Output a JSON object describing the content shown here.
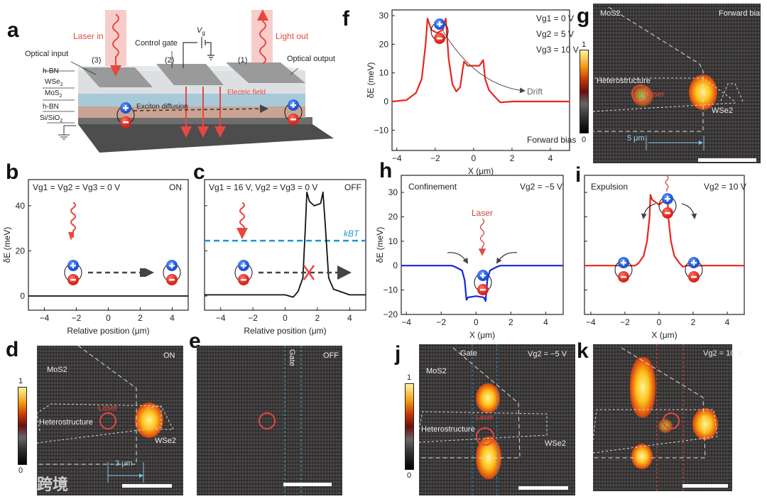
{
  "panels": {
    "a": "a",
    "b": "b",
    "c": "c",
    "d": "d",
    "e": "e",
    "f": "f",
    "g": "g",
    "h": "h",
    "i": "i",
    "j": "j",
    "k": "k"
  },
  "panel_a": {
    "laser_in": "Laser in",
    "light_out": "Light out",
    "control_gate": "Control gate",
    "vg": "V",
    "vg_sub": "g",
    "optical_input": "Optical input",
    "optical_output": "Optical output",
    "gate3": "(3)",
    "gate2": "(2)",
    "gate1": "(1)",
    "layers": [
      "h-BN",
      "WSe",
      "MoS",
      "h-BN",
      "Si/SiO"
    ],
    "sub2": "2",
    "electric_field": "Electric field",
    "exciton_diffusion": "Exciton diffusion"
  },
  "panel_b": {
    "condition": "Vg1 = Vg2 = Vg3 = 0 V",
    "state": "ON"
  },
  "panel_c": {
    "condition": "Vg1 = 16 V, Vg2 = Vg3 = 0 V",
    "state": "OFF",
    "kbt": "kBT"
  },
  "panel_f": {
    "vg1": "Vg1 = 0 V",
    "vg2": "Vg2 = 5 V",
    "vg3": "Vg3 = 10 V",
    "drift": "Drift",
    "bias": "Forward bias"
  },
  "panel_h": {
    "title": "Confinement",
    "vg": "Vg2 = −5 V",
    "laser": "Laser"
  },
  "panel_i": {
    "title": "Expulsion",
    "vg": "Vg2 = 10 V"
  },
  "images": {
    "d": {
      "state": "ON",
      "mos2": "MoS2",
      "hetero": "Heterostructure",
      "laser": "Laser",
      "wse2": "WSe2",
      "scale": "3 μm",
      "cb_max": "1",
      "cb_min": "0"
    },
    "e": {
      "state": "OFF",
      "gate": "Gate"
    },
    "g": {
      "state": "Forward bias",
      "mos2": "MoS2",
      "hetero": "Heterostructure",
      "laser": "Laser",
      "wse2": "WSe2",
      "scale": "5 μm",
      "cb_max": "1",
      "cb_min": "0"
    },
    "j": {
      "vg": "Vg2 = −5 V",
      "gate": "Gate",
      "mos2": "MoS2",
      "hetero": "Heterostructure",
      "laser": "Laser",
      "wse2": "WSe2",
      "cb_max": "1",
      "cb_min": "0"
    },
    "k": {
      "vg": "Vg2 = 10 V"
    }
  },
  "watermark": "大数跨境",
  "colors": {
    "red": "#e8473f",
    "blue": "#1a98d0",
    "exciton_plus": "#2f6fe0",
    "exciton_minus": "#e8382c",
    "h_curve": "#1428d8",
    "fi_curve": "#e8261e"
  },
  "chart_data": [
    {
      "id": "b",
      "type": "line",
      "xlabel": "Relative position (μm)",
      "ylabel": "δE (meV)",
      "xlim": [
        -5,
        5
      ],
      "ylim": [
        -6.3,
        51.6
      ],
      "xticks": [
        -4,
        -2,
        0,
        2,
        4
      ],
      "yticks": [
        0,
        20,
        40
      ],
      "ytick_labels": true,
      "color": "#111",
      "x": [
        -5,
        5
      ],
      "y": [
        0,
        0
      ]
    },
    {
      "id": "c",
      "type": "line",
      "xlabel": "Relative position (μm)",
      "ylabel": "",
      "xlim": [
        -5,
        5
      ],
      "ylim": [
        -6.3,
        51.6
      ],
      "xticks": [
        -4,
        -2,
        0,
        2,
        4
      ],
      "yticks": [
        0,
        20,
        40
      ],
      "ytick_labels": false,
      "color": "#111",
      "x": [
        -5,
        0,
        0.5,
        0.8,
        1.1,
        1.25,
        1.35,
        1.5,
        1.8,
        2.2,
        2.35,
        2.5,
        2.7,
        3,
        4,
        5
      ],
      "y": [
        0.5,
        0.5,
        -0.5,
        2,
        8,
        30,
        46,
        42,
        40,
        41,
        46,
        30,
        8,
        3,
        0.5,
        0.5
      ],
      "hline": {
        "y": 24.5,
        "color": "#1a98d0"
      }
    },
    {
      "id": "f",
      "type": "line",
      "xlabel": "X (μm)",
      "ylabel": "δE (meV)",
      "xlim": [
        -4.25,
        5
      ],
      "ylim": [
        -17.1,
        32
      ],
      "xticks": [
        -4,
        -2,
        0,
        2,
        4
      ],
      "yticks": [
        -10,
        0,
        10,
        20,
        30
      ],
      "ytick_labels": true,
      "color": "#e8261e",
      "x": [
        -4.25,
        -3.5,
        -3,
        -2.7,
        -2.5,
        -2.4,
        -2.2,
        -1.9,
        -1.6,
        -1.45,
        -1.3,
        -1.1,
        -0.9,
        -0.7,
        -0.55,
        -0.5,
        -0.3,
        0.3,
        0.5,
        0.6,
        0.8,
        1.2,
        1.4,
        2,
        5
      ],
      "y": [
        0,
        0.5,
        3,
        8,
        20,
        29,
        25,
        24,
        25,
        29,
        15,
        6,
        3.5,
        5,
        12,
        14,
        12.5,
        12.5,
        14.5,
        8,
        4,
        1,
        -0.3,
        0,
        0
      ]
    },
    {
      "id": "h",
      "type": "line",
      "xlabel": "X (μm)",
      "ylabel": "δE (meV)",
      "xlim": [
        -4.29,
        5
      ],
      "ylim": [
        -20,
        37
      ],
      "xticks": [
        -4,
        -2,
        0,
        2,
        4
      ],
      "yticks": [
        -20,
        -10,
        0,
        10,
        20,
        30
      ],
      "ytick_labels": true,
      "color": "#1428d8",
      "x": [
        -4.29,
        -1.4,
        -1.2,
        -0.8,
        -0.65,
        -0.55,
        -0.45,
        0,
        0.45,
        0.55,
        0.65,
        0.8,
        1.2,
        1.4,
        5
      ],
      "y": [
        0,
        0,
        -0.5,
        -2,
        -6,
        -14,
        -13,
        -12.5,
        -13,
        -14.5,
        -6,
        -2,
        -0.5,
        0,
        0
      ]
    },
    {
      "id": "i",
      "type": "line",
      "xlabel": "X (μm)",
      "ylabel": "",
      "xlim": [
        -4.37,
        5
      ],
      "ylim": [
        -20,
        37
      ],
      "xticks": [
        -4,
        -2,
        0,
        2,
        4
      ],
      "yticks": [
        -10,
        0,
        10,
        20,
        30
      ],
      "ytick_labels": false,
      "color": "#e8261e",
      "x": [
        -4.37,
        -1.4,
        -1.2,
        -0.9,
        -0.7,
        -0.55,
        -0.5,
        -0.4,
        0,
        0.4,
        0.5,
        0.55,
        0.7,
        0.9,
        1.2,
        1.4,
        1.6,
        5
      ],
      "y": [
        0,
        0,
        1,
        4,
        10,
        20,
        29,
        27,
        25,
        27,
        29,
        20,
        10,
        4,
        1,
        -0.5,
        0,
        0
      ]
    }
  ]
}
